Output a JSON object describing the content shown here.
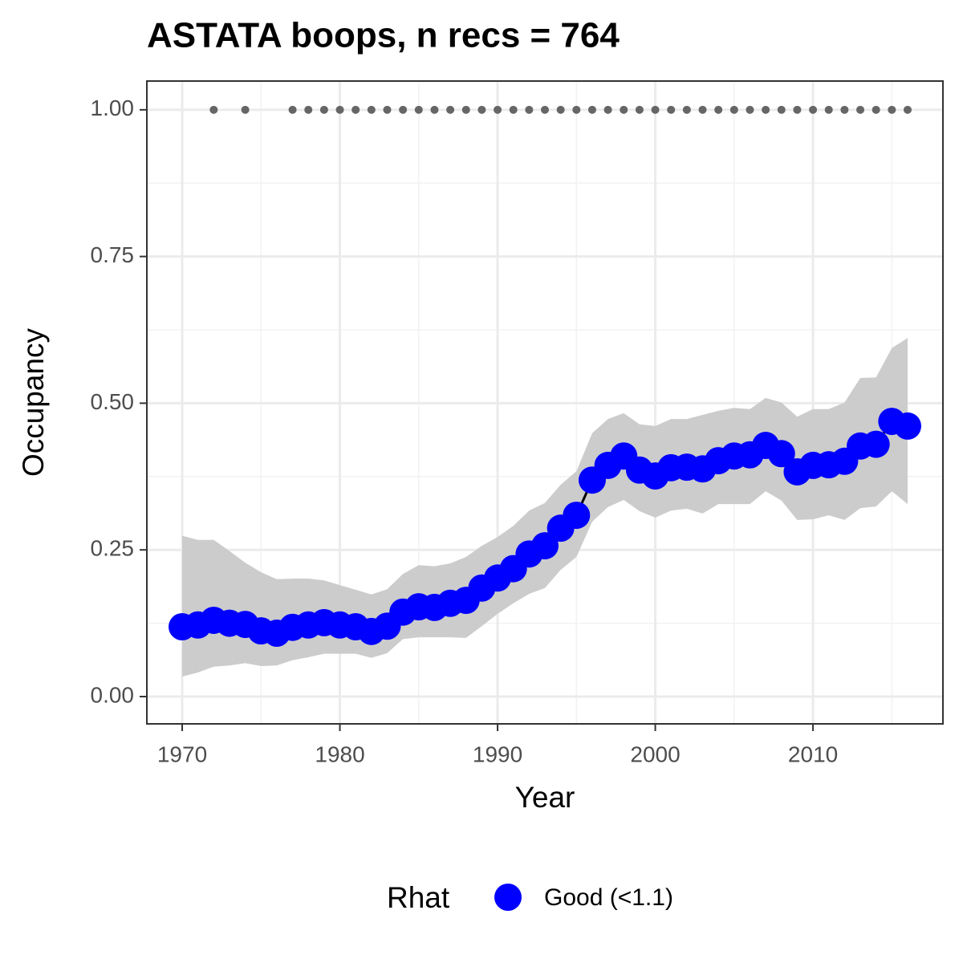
{
  "chart_data": {
    "type": "line",
    "title": "ASTATA boops, n recs = 764",
    "x_label": "Year",
    "y_label": "Occupancy",
    "x": [
      1970,
      1971,
      1972,
      1973,
      1974,
      1975,
      1976,
      1977,
      1978,
      1979,
      1980,
      1981,
      1982,
      1983,
      1984,
      1985,
      1986,
      1987,
      1988,
      1989,
      1990,
      1991,
      1992,
      1993,
      1994,
      1995,
      1996,
      1997,
      1998,
      1999,
      2000,
      2001,
      2002,
      2003,
      2004,
      2005,
      2006,
      2007,
      2008,
      2009,
      2010,
      2011,
      2012,
      2013,
      2014,
      2015,
      2016
    ],
    "series": [
      {
        "name": "Good (<1.1)",
        "color": "#0000ff",
        "line_color": "#000000",
        "values": [
          0.119,
          0.122,
          0.13,
          0.125,
          0.123,
          0.112,
          0.108,
          0.118,
          0.122,
          0.126,
          0.122,
          0.119,
          0.111,
          0.12,
          0.144,
          0.153,
          0.152,
          0.159,
          0.164,
          0.185,
          0.202,
          0.218,
          0.243,
          0.257,
          0.287,
          0.309,
          0.369,
          0.394,
          0.41,
          0.386,
          0.376,
          0.39,
          0.391,
          0.388,
          0.402,
          0.41,
          0.412,
          0.428,
          0.414,
          0.383,
          0.394,
          0.395,
          0.401,
          0.427,
          0.43,
          0.469,
          0.461
        ]
      }
    ],
    "ribbon": {
      "color": "#cccccc",
      "lower": [
        0.034,
        0.041,
        0.051,
        0.053,
        0.057,
        0.052,
        0.053,
        0.062,
        0.067,
        0.073,
        0.073,
        0.073,
        0.066,
        0.074,
        0.098,
        0.101,
        0.101,
        0.101,
        0.1,
        0.12,
        0.141,
        0.159,
        0.175,
        0.185,
        0.216,
        0.238,
        0.298,
        0.323,
        0.335,
        0.316,
        0.305,
        0.317,
        0.32,
        0.312,
        0.328,
        0.328,
        0.328,
        0.35,
        0.334,
        0.301,
        0.302,
        0.309,
        0.301,
        0.321,
        0.324,
        0.35,
        0.328
      ],
      "upper": [
        0.274,
        0.267,
        0.267,
        0.248,
        0.228,
        0.212,
        0.2,
        0.201,
        0.201,
        0.198,
        0.19,
        0.182,
        0.174,
        0.183,
        0.209,
        0.224,
        0.222,
        0.227,
        0.238,
        0.257,
        0.272,
        0.291,
        0.317,
        0.33,
        0.361,
        0.384,
        0.449,
        0.473,
        0.483,
        0.464,
        0.461,
        0.473,
        0.473,
        0.48,
        0.487,
        0.492,
        0.49,
        0.509,
        0.501,
        0.477,
        0.49,
        0.49,
        0.501,
        0.543,
        0.544,
        0.594,
        0.611
      ]
    },
    "records": {
      "color": "#666666",
      "x": [
        1972,
        1974,
        1977,
        1978,
        1979,
        1980,
        1981,
        1982,
        1983,
        1984,
        1985,
        1986,
        1987,
        1988,
        1989,
        1990,
        1991,
        1992,
        1993,
        1994,
        1995,
        1996,
        1997,
        1998,
        1999,
        2000,
        2001,
        2002,
        2003,
        2004,
        2005,
        2006,
        2007,
        2008,
        2009,
        2010,
        2011,
        2012,
        2013,
        2014,
        2015,
        2016
      ],
      "values": [
        1,
        1,
        1,
        1,
        1,
        1,
        1,
        1,
        1,
        1,
        1,
        1,
        1,
        1,
        1,
        1,
        1,
        1,
        1,
        1,
        1,
        1,
        1,
        1,
        1,
        1,
        1,
        1,
        1,
        1,
        1,
        1,
        1,
        1,
        1,
        1,
        1,
        1,
        1,
        1,
        1,
        1
      ]
    },
    "xlim": [
      1967.76,
      2018.24
    ],
    "ylim": [
      -0.0465,
      1.049
    ],
    "xticks": [
      1970,
      1980,
      1990,
      2000,
      2010
    ],
    "yticks": [
      {
        "value": 0,
        "label": "0.00"
      },
      {
        "value": 0.25,
        "label": "0.25"
      },
      {
        "value": 0.5,
        "label": "0.50"
      },
      {
        "value": 0.75,
        "label": "0.75"
      },
      {
        "value": 1,
        "label": "1.00"
      }
    ],
    "grid": true,
    "legend_title": "Rhat",
    "legend_position": "bottom"
  }
}
